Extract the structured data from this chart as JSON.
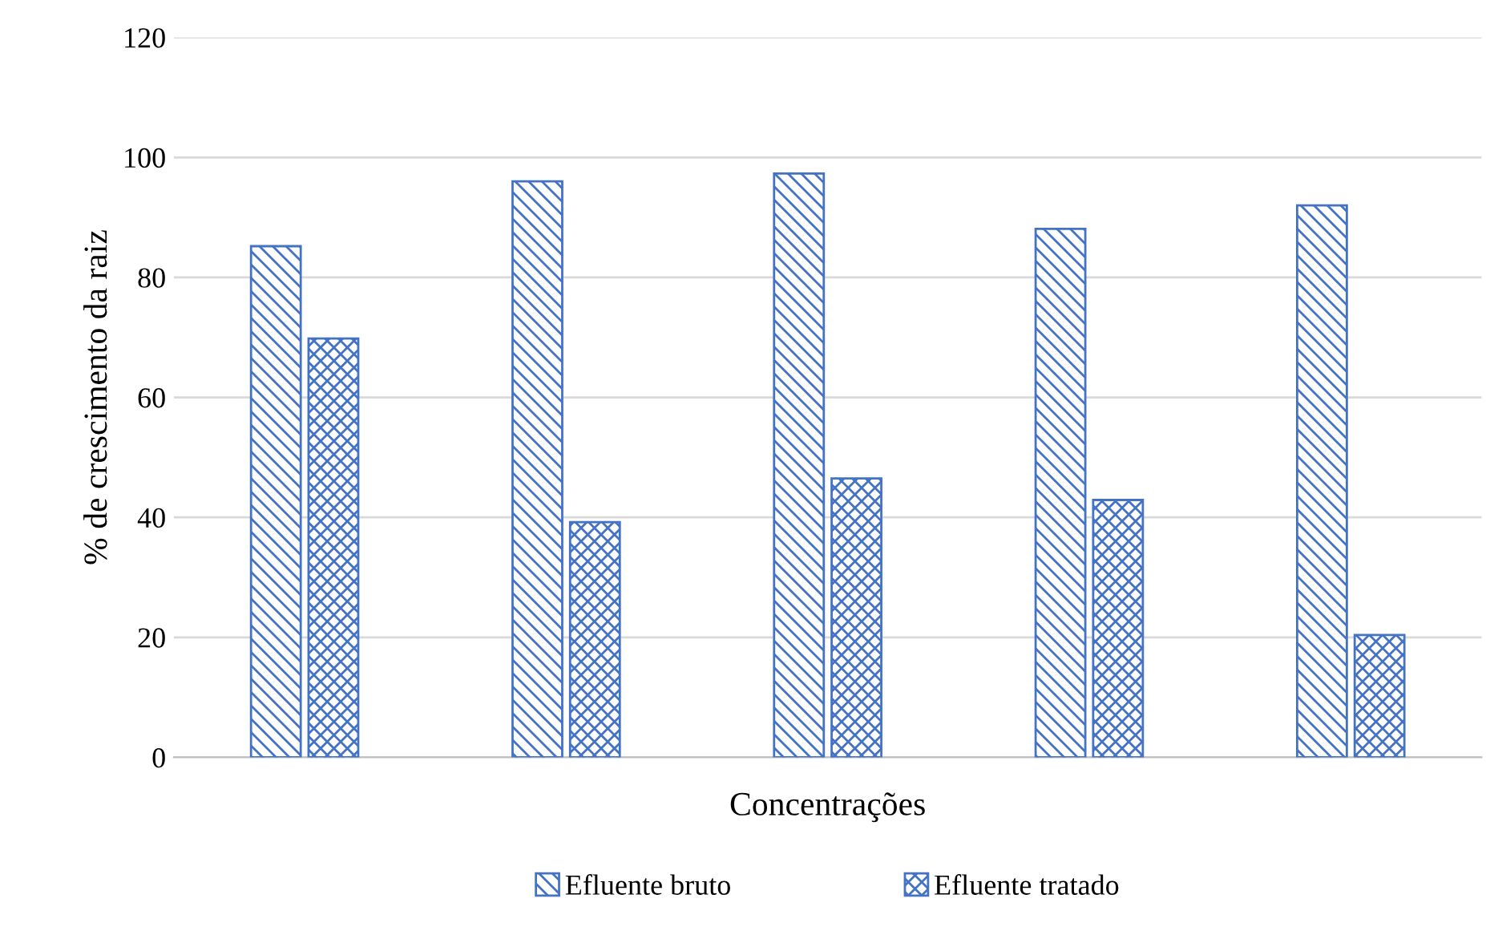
{
  "chart_data": {
    "type": "bar",
    "xlabel": "Concentrações",
    "ylabel": "% de crescimento da raiz",
    "categories": [
      null,
      null,
      null,
      null,
      null
    ],
    "series": [
      {
        "name": "Efluente bruto",
        "color": "#4472c4",
        "values": [
          85.2,
          96.0,
          97.3,
          88.1,
          92.0
        ]
      },
      {
        "name": "Efluente tratado",
        "color": "#4472c4",
        "values": [
          69.8,
          39.2,
          46.5,
          42.9,
          20.4
        ]
      }
    ],
    "ylim": [
      0,
      120
    ],
    "yticks": [
      0,
      20,
      40,
      60,
      80,
      100,
      120
    ],
    "grid": "y",
    "legend": "bottom"
  }
}
